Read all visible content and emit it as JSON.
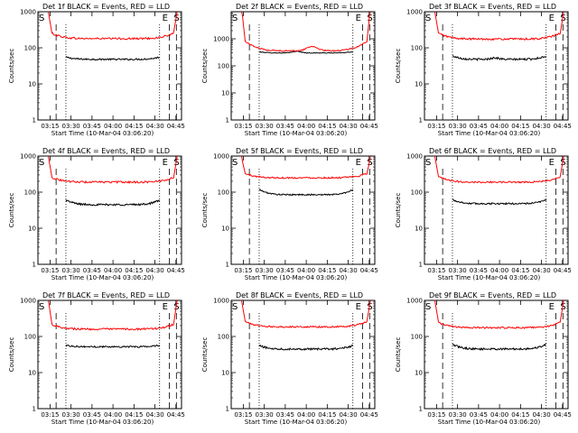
{
  "figure": {
    "background": "#ffffff",
    "colors": {
      "events": "#000000",
      "lld": "#ff0000",
      "axes": "#000000"
    }
  },
  "chart_data": [
    {
      "type": "line",
      "title": "Det 1f BLACK = Events, RED = LLD",
      "xlabel": "Start Time (10-Mar-04 03:06:20)",
      "ylabel": "Counts/sec",
      "xticks": [
        "03:15",
        "03:30",
        "03:45",
        "04:00",
        "04:15",
        "04:30",
        "04:45"
      ],
      "yticks": [
        "1",
        "10",
        "100",
        "1000"
      ],
      "ylim": [
        1,
        1000
      ],
      "yscale": "log",
      "xlim": [
        "03:06:20",
        "04:49:00"
      ],
      "markers": {
        "left": "S",
        "right_e": "E",
        "right_s": "S"
      },
      "vlines": {
        "dashed_minutes": [
          13,
          94,
          99
        ],
        "dotted_minutes": [
          20,
          87
        ]
      },
      "series": [
        {
          "name": "Events",
          "color": "#000000",
          "x_start_min": 20,
          "x_end_min": 87,
          "level": 48,
          "noise": 0.05,
          "edge_rise": 0.15,
          "bump_pos": 0.5,
          "bump_amp": 0.0
        },
        {
          "name": "LLD",
          "color": "#ff0000",
          "x_start_min": 10,
          "x_end_min": 97,
          "level": 180,
          "noise": 0.06,
          "edge_rise": 0.4,
          "bump_pos": 0.5,
          "bump_amp": 0.0
        }
      ]
    },
    {
      "type": "line",
      "title": "Det 2f BLACK = Events, RED = LLD",
      "xlabel": "Start Time (10-Mar-04 03:06:20)",
      "ylabel": "Counts/sec",
      "xticks": [
        "03:15",
        "03:30",
        "03:45",
        "04:00",
        "04:15",
        "04:30",
        "04:45"
      ],
      "yticks": [
        "1",
        "10",
        "100",
        "1000"
      ],
      "ylim": [
        1,
        10000
      ],
      "yscale": "log",
      "xlim": [
        "03:06:20",
        "04:49:00"
      ],
      "markers": {
        "left": "S",
        "right_e": "E",
        "right_s": "S"
      },
      "vlines": {
        "dashed_minutes": [
          13,
          94,
          99
        ],
        "dotted_minutes": [
          20,
          87
        ]
      },
      "series": [
        {
          "name": "Events",
          "color": "#000000",
          "x_start_min": 20,
          "x_end_min": 87,
          "level": 300,
          "noise": 0.03,
          "edge_rise": 0.1,
          "bump_pos": 0.4,
          "bump_amp": 0.15
        },
        {
          "name": "LLD",
          "color": "#ff0000",
          "x_start_min": 10,
          "x_end_min": 97,
          "level": 360,
          "noise": 0.05,
          "edge_rise": 1.2,
          "bump_pos": 0.55,
          "bump_amp": 0.45
        }
      ]
    },
    {
      "type": "line",
      "title": "Det 3f BLACK = Events, RED = LLD",
      "xlabel": "Start Time (10-Mar-04 03:06:20)",
      "ylabel": "Counts/sec",
      "xticks": [
        "03:15",
        "03:30",
        "03:45",
        "04:00",
        "04:15",
        "04:30",
        "04:45"
      ],
      "yticks": [
        "1",
        "10",
        "100",
        "1000"
      ],
      "ylim": [
        1,
        1000
      ],
      "yscale": "log",
      "xlim": [
        "03:06:20",
        "04:49:00"
      ],
      "markers": {
        "left": "S",
        "right_e": "E",
        "right_s": "S"
      },
      "vlines": {
        "dashed_minutes": [
          13,
          94,
          99
        ],
        "dotted_minutes": [
          20,
          87
        ]
      },
      "series": [
        {
          "name": "Events",
          "color": "#000000",
          "x_start_min": 20,
          "x_end_min": 87,
          "level": 48,
          "noise": 0.06,
          "edge_rise": 0.25,
          "bump_pos": 0.45,
          "bump_amp": 0.1
        },
        {
          "name": "LLD",
          "color": "#ff0000",
          "x_start_min": 10,
          "x_end_min": 97,
          "level": 175,
          "noise": 0.06,
          "edge_rise": 0.45,
          "bump_pos": 0.5,
          "bump_amp": 0.0
        }
      ]
    },
    {
      "type": "line",
      "title": "Det 4f BLACK = Events, RED = LLD",
      "xlabel": "Start Time (10-Mar-04 03:06:20)",
      "ylabel": "Counts/sec",
      "xticks": [
        "03:15",
        "03:30",
        "03:45",
        "04:00",
        "04:15",
        "04:30",
        "04:45"
      ],
      "yticks": [
        "1",
        "10",
        "100",
        "1000"
      ],
      "ylim": [
        1,
        1000
      ],
      "yscale": "log",
      "xlim": [
        "03:06:20",
        "04:49:00"
      ],
      "markers": {
        "left": "S",
        "right_e": "E",
        "right_s": "S"
      },
      "vlines": {
        "dashed_minutes": [
          13,
          94,
          99
        ],
        "dotted_minutes": [
          20,
          87
        ]
      },
      "series": [
        {
          "name": "Events",
          "color": "#000000",
          "x_start_min": 20,
          "x_end_min": 87,
          "level": 45,
          "noise": 0.06,
          "edge_rise": 0.35,
          "bump_pos": 0.5,
          "bump_amp": 0.0
        },
        {
          "name": "LLD",
          "color": "#ff0000",
          "x_start_min": 10,
          "x_end_min": 97,
          "level": 190,
          "noise": 0.06,
          "edge_rise": 0.35,
          "bump_pos": 0.5,
          "bump_amp": 0.0
        }
      ]
    },
    {
      "type": "line",
      "title": "Det 5f BLACK = Events, RED = LLD",
      "xlabel": "Start Time (10-Mar-04 03:06:20)",
      "ylabel": "Counts/sec",
      "xticks": [
        "03:15",
        "03:30",
        "03:45",
        "04:00",
        "04:15",
        "04:30",
        "04:45"
      ],
      "yticks": [
        "1",
        "10",
        "100",
        "1000"
      ],
      "ylim": [
        1,
        1000
      ],
      "yscale": "log",
      "xlim": [
        "03:06:20",
        "04:49:00"
      ],
      "markers": {
        "left": "S",
        "right_e": "E",
        "right_s": "S"
      },
      "vlines": {
        "dashed_minutes": [
          13,
          94,
          99
        ],
        "dotted_minutes": [
          20,
          87
        ]
      },
      "series": [
        {
          "name": "Events",
          "color": "#000000",
          "x_start_min": 20,
          "x_end_min": 87,
          "level": 85,
          "noise": 0.04,
          "edge_rise": 0.4,
          "bump_pos": 0.5,
          "bump_amp": 0.0
        },
        {
          "name": "LLD",
          "color": "#ff0000",
          "x_start_min": 10,
          "x_end_min": 97,
          "level": 250,
          "noise": 0.05,
          "edge_rise": 0.3,
          "bump_pos": 0.5,
          "bump_amp": 0.0
        }
      ]
    },
    {
      "type": "line",
      "title": "Det 6f BLACK = Events, RED = LLD",
      "xlabel": "Start Time (10-Mar-04 03:06:20)",
      "ylabel": "Counts/sec",
      "xticks": [
        "03:15",
        "03:30",
        "03:45",
        "04:00",
        "04:15",
        "04:30",
        "04:45"
      ],
      "yticks": [
        "1",
        "10",
        "100",
        "1000"
      ],
      "ylim": [
        1,
        1000
      ],
      "yscale": "log",
      "xlim": [
        "03:06:20",
        "04:49:00"
      ],
      "markers": {
        "left": "S",
        "right_e": "E",
        "right_s": "S"
      },
      "vlines": {
        "dashed_minutes": [
          13,
          94,
          99
        ],
        "dotted_minutes": [
          20,
          87
        ]
      },
      "series": [
        {
          "name": "Events",
          "color": "#000000",
          "x_start_min": 20,
          "x_end_min": 87,
          "level": 48,
          "noise": 0.05,
          "edge_rise": 0.3,
          "bump_pos": 0.5,
          "bump_amp": 0.0
        },
        {
          "name": "LLD",
          "color": "#ff0000",
          "x_start_min": 10,
          "x_end_min": 97,
          "level": 190,
          "noise": 0.05,
          "edge_rise": 0.4,
          "bump_pos": 0.5,
          "bump_amp": 0.0
        }
      ]
    },
    {
      "type": "line",
      "title": "Det 7f BLACK = Events, RED = LLD",
      "xlabel": "Start Time (10-Mar-04 03:06:20)",
      "ylabel": "Counts/sec",
      "xticks": [
        "03:15",
        "03:30",
        "03:45",
        "04:00",
        "04:15",
        "04:30",
        "04:45"
      ],
      "yticks": [
        "1",
        "10",
        "100",
        "1000"
      ],
      "ylim": [
        1,
        1000
      ],
      "yscale": "log",
      "xlim": [
        "03:06:20",
        "04:49:00"
      ],
      "markers": {
        "left": "S",
        "right_e": "E",
        "right_s": "S"
      },
      "vlines": {
        "dashed_minutes": [
          13,
          94,
          99
        ],
        "dotted_minutes": [
          20,
          87
        ]
      },
      "series": [
        {
          "name": "Events",
          "color": "#000000",
          "x_start_min": 20,
          "x_end_min": 87,
          "level": 52,
          "noise": 0.05,
          "edge_rise": 0.1,
          "bump_pos": 0.5,
          "bump_amp": 0.0
        },
        {
          "name": "LLD",
          "color": "#ff0000",
          "x_start_min": 10,
          "x_end_min": 97,
          "level": 160,
          "noise": 0.06,
          "edge_rise": 0.35,
          "bump_pos": 0.5,
          "bump_amp": 0.0
        }
      ]
    },
    {
      "type": "line",
      "title": "Det 8f BLACK = Events, RED = LLD",
      "xlabel": "Start Time (10-Mar-04 03:06:20)",
      "ylabel": "Counts/sec",
      "xticks": [
        "03:15",
        "03:30",
        "03:45",
        "04:00",
        "04:15",
        "04:30",
        "04:45"
      ],
      "yticks": [
        "1",
        "10",
        "100",
        "1000"
      ],
      "ylim": [
        1,
        1000
      ],
      "yscale": "log",
      "xlim": [
        "03:06:20",
        "04:49:00"
      ],
      "markers": {
        "left": "S",
        "right_e": "E",
        "right_s": "S"
      },
      "vlines": {
        "dashed_minutes": [
          13,
          94,
          99
        ],
        "dotted_minutes": [
          20,
          87
        ]
      },
      "series": [
        {
          "name": "Events",
          "color": "#000000",
          "x_start_min": 20,
          "x_end_min": 87,
          "level": 45,
          "noise": 0.06,
          "edge_rise": 0.25,
          "bump_pos": 0.5,
          "bump_amp": 0.0
        },
        {
          "name": "LLD",
          "color": "#ff0000",
          "x_start_min": 10,
          "x_end_min": 97,
          "level": 185,
          "noise": 0.05,
          "edge_rise": 0.4,
          "bump_pos": 0.5,
          "bump_amp": 0.0
        }
      ]
    },
    {
      "type": "line",
      "title": "Det 9f BLACK = Events, RED = LLD",
      "xlabel": "Start Time (10-Mar-04 03:06:20)",
      "ylabel": "Counts/sec",
      "xticks": [
        "03:15",
        "03:30",
        "03:45",
        "04:00",
        "04:15",
        "04:30",
        "04:45"
      ],
      "yticks": [
        "1",
        "10",
        "100",
        "1000"
      ],
      "ylim": [
        1,
        1000
      ],
      "yscale": "log",
      "xlim": [
        "03:06:20",
        "04:49:00"
      ],
      "markers": {
        "left": "S",
        "right_e": "E",
        "right_s": "S"
      },
      "vlines": {
        "dashed_minutes": [
          13,
          94,
          99
        ],
        "dotted_minutes": [
          20,
          87
        ]
      },
      "series": [
        {
          "name": "Events",
          "color": "#000000",
          "x_start_min": 20,
          "x_end_min": 87,
          "level": 45,
          "noise": 0.06,
          "edge_rise": 0.35,
          "bump_pos": 0.5,
          "bump_amp": 0.0
        },
        {
          "name": "LLD",
          "color": "#ff0000",
          "x_start_min": 10,
          "x_end_min": 97,
          "level": 175,
          "noise": 0.05,
          "edge_rise": 0.4,
          "bump_pos": 0.5,
          "bump_amp": 0.0
        }
      ]
    }
  ]
}
